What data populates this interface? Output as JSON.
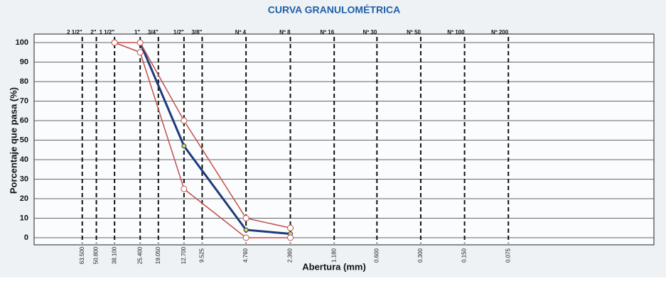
{
  "chart_data": {
    "type": "line",
    "title": "CURVA GRANULOMÉTRICA",
    "y_label": "Porcentaje que pasa (%)",
    "x_label": "Abertura (mm)",
    "x_scale": "log",
    "x_reversed": true,
    "xlim": [
      136,
      0.0075
    ],
    "ylim": [
      0,
      100
    ],
    "yticks": [
      0,
      10,
      20,
      30,
      40,
      50,
      60,
      70,
      80,
      90,
      100
    ],
    "xticks": [
      {
        "value": 63.5,
        "label": "63.500"
      },
      {
        "value": 50.8,
        "label": "50.800"
      },
      {
        "value": 38.1,
        "label": "38.100"
      },
      {
        "value": 25.4,
        "label": "25.400"
      },
      {
        "value": 19.05,
        "label": "19.050"
      },
      {
        "value": 12.7,
        "label": "12.700"
      },
      {
        "value": 9.525,
        "label": "9.525"
      },
      {
        "value": 4.76,
        "label": "4.760"
      },
      {
        "value": 2.36,
        "label": "2.360"
      },
      {
        "value": 1.18,
        "label": "1.180"
      },
      {
        "value": 0.6,
        "label": "0.600"
      },
      {
        "value": 0.3,
        "label": "0.300"
      },
      {
        "value": 0.15,
        "label": "0.150"
      },
      {
        "value": 0.075,
        "label": "0.075"
      }
    ],
    "sieve_names": [
      "2 1/2\"",
      "2\"",
      "1 1/2\"",
      "1\"",
      "3/4\"",
      "1/2\"",
      "3/8\"",
      "Nº 4",
      "Nº 8",
      "Nº 16",
      "Nº 30",
      "Nº 50",
      "Nº 100",
      "Nº 200"
    ],
    "grid": true,
    "series": [
      {
        "color": "#1f3a7a",
        "marker_color": "#d8d84a",
        "x": [
          25.4,
          12.7,
          4.76,
          2.36
        ],
        "values": [
          100,
          47,
          4,
          2
        ]
      },
      {
        "color": "#c0504d",
        "marker_color": "#ffffff",
        "x": [
          38.1,
          25.4,
          12.7,
          4.76,
          2.36
        ],
        "values": [
          100,
          100,
          60,
          10,
          5
        ]
      },
      {
        "color": "#c0504d",
        "marker_color": "#ffffff",
        "x": [
          38.1,
          25.4,
          12.7,
          4.76,
          2.36
        ],
        "values": [
          100,
          95,
          25,
          0,
          0
        ]
      }
    ]
  }
}
